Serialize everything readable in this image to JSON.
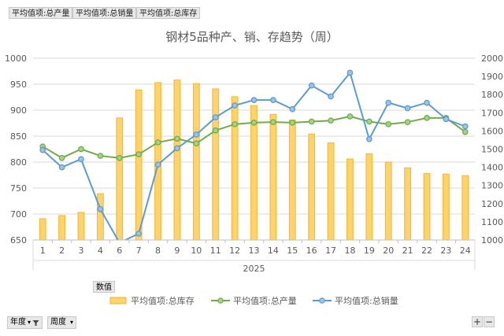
{
  "field_buttons": [
    "平均值项:总产量",
    "平均值项:总销量",
    "平均值项:总库存"
  ],
  "values_button": "数值",
  "filters": {
    "year": "年度",
    "week": "周度"
  },
  "corner": {
    "plus": "+",
    "minus": "−"
  },
  "colors": {
    "bar_fill": "#ffd36b",
    "bar_stroke": "#f2b632",
    "production": "#70ad47",
    "sales": "#5b9bd5",
    "grid": "#d9d9d9",
    "axis_text": "#595959"
  },
  "chart_data": {
    "type": "bar+line",
    "title": "钢材5品种产、销、存趋势（周）",
    "group_label": "2025",
    "categories": [
      "1",
      "2",
      "3",
      "4",
      "6",
      "7",
      "8",
      "9",
      "10",
      "11",
      "12",
      "13",
      "14",
      "15",
      "16",
      "17",
      "18",
      "19",
      "20",
      "21",
      "22",
      "23",
      "24"
    ],
    "left_axis": {
      "ylim": [
        650,
        1000
      ],
      "ticks": [
        650,
        700,
        750,
        800,
        850,
        900,
        950,
        1000
      ]
    },
    "right_axis": {
      "ylim": [
        1000,
        2000
      ],
      "ticks": [
        1000,
        1100,
        1200,
        1300,
        1400,
        1500,
        1600,
        1700,
        1800,
        1900,
        2000
      ]
    },
    "legend_position": "bottom",
    "series": [
      {
        "name": "平均值项:总库存",
        "kind": "bar",
        "axis": "left",
        "values": [
          691,
          697,
          703,
          739,
          885,
          939,
          953,
          958,
          951,
          941,
          926,
          909,
          892,
          881,
          854,
          837,
          806,
          816,
          800,
          789,
          778,
          777,
          774
        ]
      },
      {
        "name": "平均值项:总产量",
        "kind": "line",
        "axis": "left",
        "values": [
          830,
          808,
          825,
          812,
          808,
          815,
          838,
          845,
          836,
          861,
          873,
          876,
          877,
          876,
          878,
          880,
          888,
          878,
          873,
          877,
          885,
          885,
          858
        ]
      },
      {
        "name": "平均值项:总销量",
        "kind": "line",
        "axis": "right",
        "values": [
          1495,
          1400,
          1445,
          1170,
          985,
          1035,
          1415,
          1505,
          1580,
          1675,
          1740,
          1770,
          1770,
          1720,
          1850,
          1790,
          1920,
          1555,
          1755,
          1725,
          1755,
          1665,
          1625
        ]
      }
    ]
  }
}
